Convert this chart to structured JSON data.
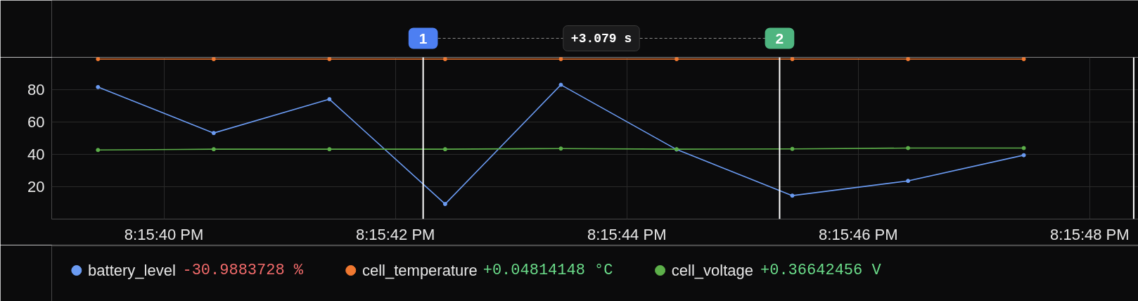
{
  "chart_data": {
    "type": "line",
    "x": [
      20.2609528,
      20.2612306,
      20.2615083,
      20.2617861,
      20.2620639,
      20.2623417,
      20.2626194,
      20.2628972,
      20.263175
    ],
    "xlim": [
      20.2608417,
      20.26345
    ],
    "xticks": [
      {
        "value": 20.2611111,
        "label": "8:15:40 PM"
      },
      {
        "value": 20.2616667,
        "label": "8:15:42 PM"
      },
      {
        "value": 20.2622222,
        "label": "8:15:44 PM"
      },
      {
        "value": 20.2627778,
        "label": "8:15:46 PM"
      },
      {
        "value": 20.2633333,
        "label": "8:15:48 PM"
      }
    ],
    "ylim": [
      0,
      100
    ],
    "yticks": [
      20,
      40,
      60,
      80
    ],
    "series": [
      {
        "name": "battery_level",
        "color": "#6b9bf2",
        "values": [
          81.6,
          53.2,
          74.1,
          9.3,
          83.0,
          43.0,
          14.5,
          23.6,
          39.5
        ]
      },
      {
        "name": "cell_temperature",
        "color": "#f07830",
        "values": [
          98.9,
          98.9,
          98.9,
          98.9,
          98.9,
          98.9,
          98.9,
          98.9,
          98.9
        ]
      },
      {
        "name": "cell_voltage",
        "color": "#5db04a",
        "values": [
          42.7,
          43.2,
          43.2,
          43.2,
          43.6,
          43.2,
          43.4,
          43.9,
          43.9
        ]
      }
    ],
    "marker": "circle",
    "line_style": "solid",
    "grid": true,
    "legend": "bottom",
    "ref_lines": [
      {
        "axis": "x",
        "value": 20.2617333,
        "color": "#ffffff"
      },
      {
        "axis": "x",
        "value": 20.2625889,
        "color": "#ffffff"
      },
      {
        "axis": "x",
        "value": 20.2634389,
        "color": "#ffffff"
      }
    ],
    "annotations": [
      "1",
      "2",
      "+3.079 s",
      "-30.9883728 %",
      "+0.04814148 °C",
      "+0.36642456 V"
    ]
  }
}
